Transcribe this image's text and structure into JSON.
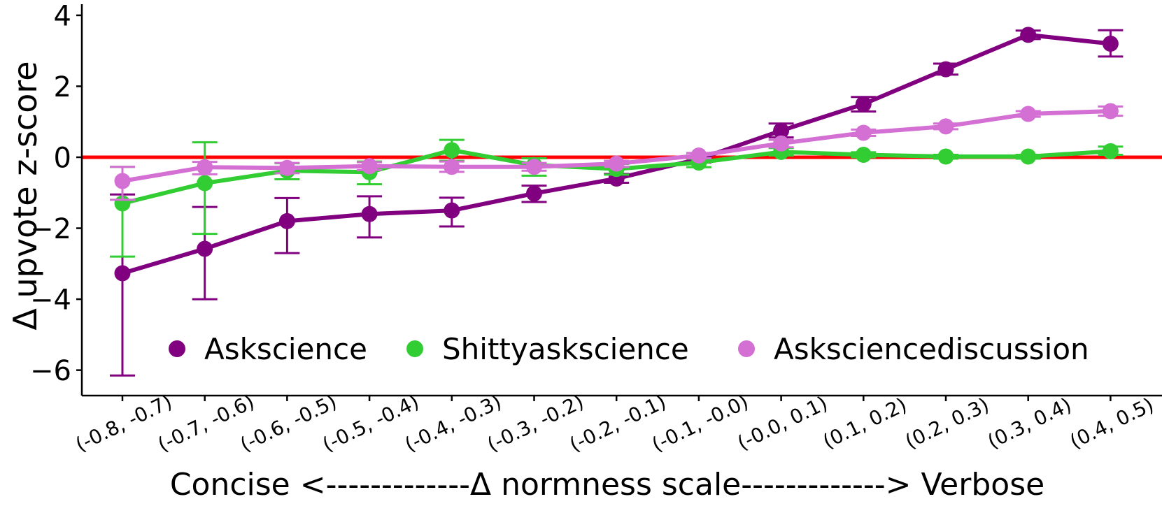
{
  "chart_data": {
    "type": "line",
    "title": "",
    "xlabel": "Concise <-------------Δ normness scale-------------> Verbose",
    "ylabel": "Δ upvote z-score",
    "grid": false,
    "legend_position": "bottom-inside",
    "ylim": [
      -6.7,
      4.3
    ],
    "categories": [
      "(-0.8, -0.7)",
      "(-0.7, -0.6)",
      "(-0.6, -0.5)",
      "(-0.5, -0.4)",
      "(-0.4, -0.3)",
      "(-0.3, -0.2)",
      "(-0.2, -0.1)",
      "(-0.1, -0.0)",
      "(-0.0, 0.1)",
      "(0.1, 0.2)",
      "(0.2, 0.3)",
      "(0.3, 0.4)",
      "(0.4, 0.5)"
    ],
    "yticks": {
      "values": [
        4,
        2,
        0,
        -2,
        -4,
        -6
      ],
      "labels": [
        "4",
        "2",
        "0",
        "−2",
        "−4",
        "−6"
      ]
    },
    "reference_line": {
      "value": 0,
      "color": "#ff0000"
    },
    "series": [
      {
        "name": "Askscience",
        "color": "#800080",
        "values": [
          -3.27,
          -2.58,
          -1.8,
          -1.6,
          -1.5,
          -1.02,
          -0.6,
          -0.05,
          0.75,
          1.5,
          2.48,
          3.45,
          3.2
        ],
        "err_hi": [
          -1.05,
          -1.4,
          -1.15,
          -1.1,
          -1.14,
          -0.8,
          -0.47,
          0.05,
          0.95,
          1.7,
          2.64,
          3.57,
          3.58
        ],
        "err_lo": [
          -6.15,
          -4.0,
          -2.7,
          -2.26,
          -1.95,
          -1.26,
          -0.72,
          -0.15,
          0.56,
          1.29,
          2.33,
          3.33,
          2.84
        ]
      },
      {
        "name": "Shittyaskscience",
        "color": "#32cd32",
        "values": [
          -1.3,
          -0.73,
          -0.38,
          -0.42,
          0.2,
          -0.22,
          -0.33,
          -0.15,
          0.15,
          0.07,
          0.02,
          0.02,
          0.17
        ],
        "err_hi": [
          -0.27,
          0.42,
          -0.17,
          -0.12,
          0.49,
          -0.03,
          -0.19,
          -0.04,
          0.26,
          0.14,
          0.07,
          0.07,
          0.3
        ],
        "err_lo": [
          -2.8,
          -2.16,
          -0.62,
          -0.76,
          -0.1,
          -0.52,
          -0.49,
          -0.28,
          0.05,
          0.0,
          -0.04,
          -0.04,
          0.07
        ]
      },
      {
        "name": "Asksciencediscussion",
        "color": "#d46fd4",
        "values": [
          -0.67,
          -0.28,
          -0.3,
          -0.25,
          -0.27,
          -0.27,
          -0.18,
          0.05,
          0.39,
          0.69,
          0.87,
          1.22,
          1.3
        ],
        "err_hi": [
          -0.27,
          -0.13,
          -0.16,
          -0.14,
          -0.12,
          -0.16,
          -0.1,
          0.12,
          0.49,
          0.78,
          0.95,
          1.3,
          1.43
        ],
        "err_lo": [
          -1.2,
          -0.48,
          -0.45,
          -0.36,
          -0.41,
          -0.38,
          -0.27,
          -0.03,
          0.28,
          0.6,
          0.79,
          1.14,
          1.17
        ]
      }
    ]
  }
}
